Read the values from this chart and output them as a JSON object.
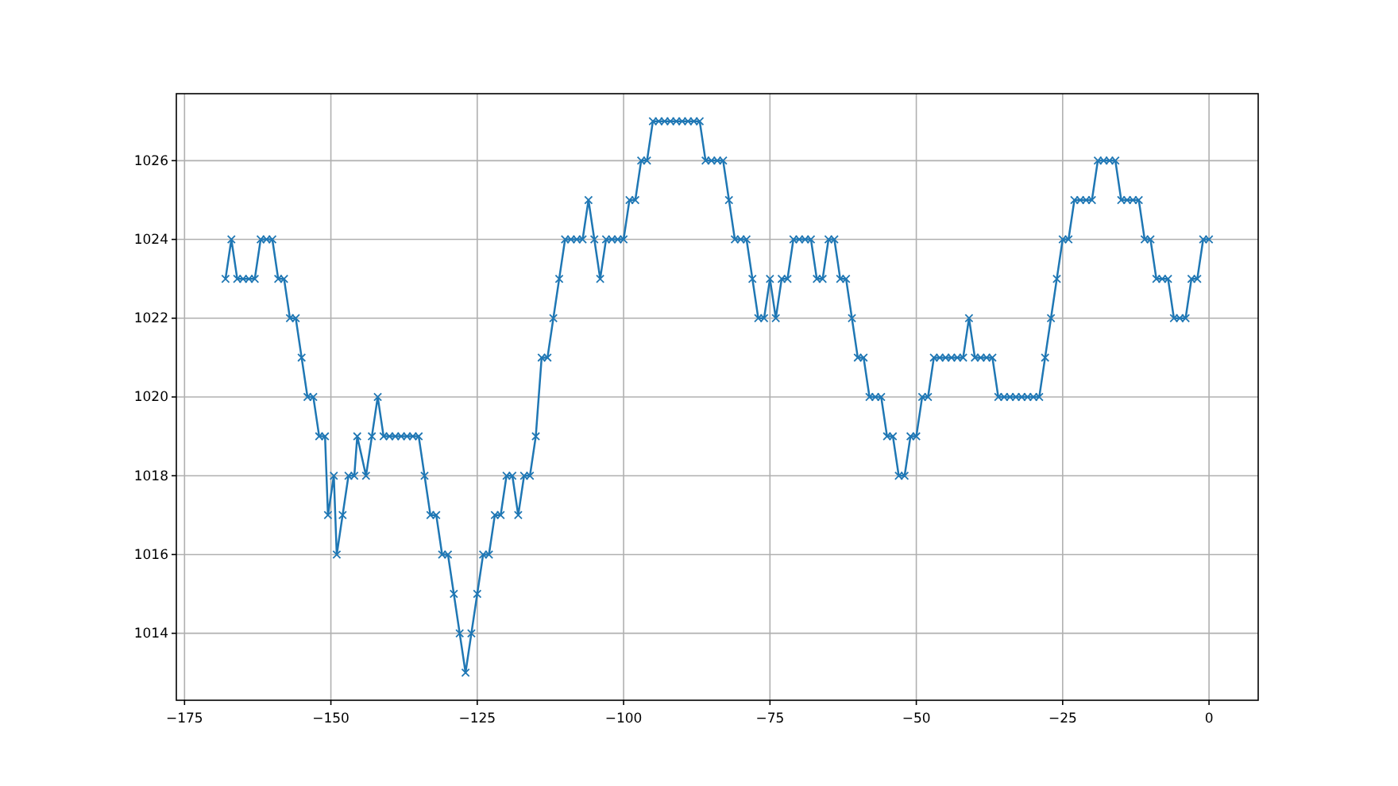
{
  "chart_data": {
    "type": "line",
    "marker": "cross",
    "line_style": "solid",
    "color": "#1f77b4",
    "grid": true,
    "x": [
      -168,
      -167,
      -166,
      -165,
      -164,
      -163,
      -162,
      -161,
      -160,
      -159,
      -158,
      -157,
      -156,
      -155,
      -154,
      -153,
      -152,
      -151,
      -150.5,
      -149.5,
      -149,
      -148,
      -147,
      -146,
      -145.5,
      -144,
      -143,
      -142,
      -141,
      -140,
      -139,
      -138,
      -137,
      -136,
      -135,
      -134,
      -133,
      -132,
      -131,
      -130,
      -129,
      -128,
      -127,
      -126,
      -125,
      -124,
      -123,
      -122,
      -121,
      -120,
      -119,
      -118,
      -117,
      -116,
      -115,
      -114,
      -113,
      -112,
      -111,
      -110,
      -109,
      -108,
      -107,
      -106,
      -105,
      -104,
      -103,
      -102,
      -101,
      -100,
      -99,
      -98,
      -97,
      -96,
      -95,
      -94,
      -93,
      -92,
      -91,
      -90,
      -89,
      -88,
      -87,
      -86,
      -85,
      -84,
      -83,
      -82,
      -81,
      -80,
      -79,
      -78,
      -77,
      -76,
      -75,
      -74,
      -73,
      -72,
      -71,
      -70,
      -69,
      -68,
      -67,
      -66,
      -65,
      -64,
      -63,
      -62,
      -61,
      -60,
      -59,
      -58,
      -57,
      -56,
      -55,
      -54,
      -53,
      -52,
      -51,
      -50,
      -49,
      -48,
      -47,
      -46,
      -45,
      -44,
      -43,
      -42,
      -41,
      -40,
      -39,
      -38,
      -37,
      -36,
      -35,
      -34,
      -33,
      -32,
      -31,
      -30,
      -29,
      -28,
      -27,
      -26,
      -25,
      -24,
      -23,
      -22,
      -21,
      -20,
      -19,
      -18,
      -17,
      -16,
      -15,
      -14,
      -13,
      -12,
      -11,
      -10,
      -9,
      -8,
      -7,
      -6,
      -5,
      -4,
      -3,
      -2,
      -1,
      0
    ],
    "values": [
      1023,
      1024,
      1023,
      1023,
      1023,
      1023,
      1024,
      1024,
      1024,
      1023,
      1023,
      1022,
      1022,
      1021,
      1020,
      1020,
      1019,
      1019,
      1017,
      1018,
      1016,
      1017,
      1018,
      1018,
      1019,
      1018,
      1019,
      1020,
      1019,
      1019,
      1019,
      1019,
      1019,
      1019,
      1019,
      1018,
      1017,
      1017,
      1016,
      1016,
      1015,
      1014,
      1013,
      1014,
      1015,
      1016,
      1016,
      1017,
      1017,
      1018,
      1018,
      1017,
      1018,
      1018,
      1019,
      1021,
      1021,
      1022,
      1023,
      1024,
      1024,
      1024,
      1024,
      1025,
      1024,
      1023,
      1024,
      1024,
      1024,
      1024,
      1025,
      1025,
      1026,
      1026,
      1027,
      1027,
      1027,
      1027,
      1027,
      1027,
      1027,
      1027,
      1027,
      1026,
      1026,
      1026,
      1026,
      1025,
      1024,
      1024,
      1024,
      1023,
      1022,
      1022,
      1023,
      1022,
      1023,
      1023,
      1024,
      1024,
      1024,
      1024,
      1023,
      1023,
      1024,
      1024,
      1023,
      1023,
      1022,
      1021,
      1021,
      1020,
      1020,
      1020,
      1019,
      1019,
      1018,
      1018,
      1019,
      1019,
      1020,
      1020,
      1021,
      1021,
      1021,
      1021,
      1021,
      1021,
      1022,
      1021,
      1021,
      1021,
      1021,
      1020,
      1020,
      1020,
      1020,
      1020,
      1020,
      1020,
      1020,
      1021,
      1022,
      1023,
      1024,
      1024,
      1025,
      1025,
      1025,
      1025,
      1026,
      1026,
      1026,
      1026,
      1025,
      1025,
      1025,
      1025,
      1024,
      1024,
      1023,
      1023,
      1023,
      1022,
      1022,
      1022,
      1023,
      1023,
      1024,
      1024
    ],
    "xlim": [
      -176.4,
      8.4
    ],
    "ylim": [
      1012.3,
      1027.7
    ],
    "xticks": [
      -175,
      -150,
      -125,
      -100,
      -75,
      -50,
      -25,
      0
    ],
    "yticks": [
      1014,
      1016,
      1018,
      1020,
      1022,
      1024,
      1026
    ]
  }
}
